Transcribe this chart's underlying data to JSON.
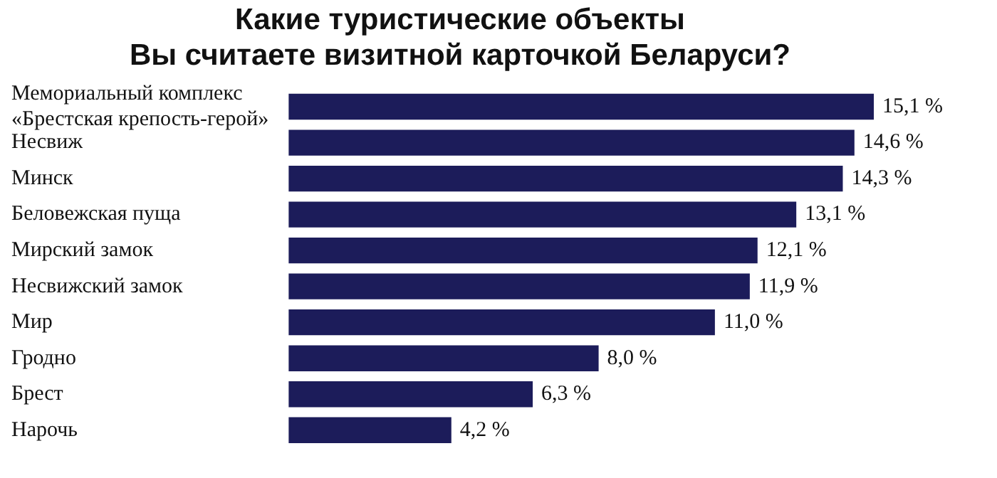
{
  "chart_data": {
    "type": "bar",
    "orientation": "horizontal",
    "title": "Какие туристические объекты\nВы считаете визитной карточкой Беларуси?",
    "categories": [
      "Мемориальный комплекс\n«Брестская крепость-герой»",
      "Несвиж",
      "Минск",
      "Беловежская пуща",
      "Мирский замок",
      "Несвижский замок",
      "Мир",
      "Гродно",
      "Брест",
      "Нарочь"
    ],
    "values": [
      15.1,
      14.6,
      14.3,
      13.1,
      12.1,
      11.9,
      11.0,
      8.0,
      6.3,
      4.2
    ],
    "value_labels": [
      "15,1 %",
      "14,6 %",
      "14,3 %",
      "13,1 %",
      "12,1 %",
      "11,9 %",
      "11,0 %",
      "8,0 %",
      "6,3 %",
      "4,2 %"
    ],
    "color": "#1c1c5a",
    "legend": false,
    "tick_labels": "y"
  }
}
